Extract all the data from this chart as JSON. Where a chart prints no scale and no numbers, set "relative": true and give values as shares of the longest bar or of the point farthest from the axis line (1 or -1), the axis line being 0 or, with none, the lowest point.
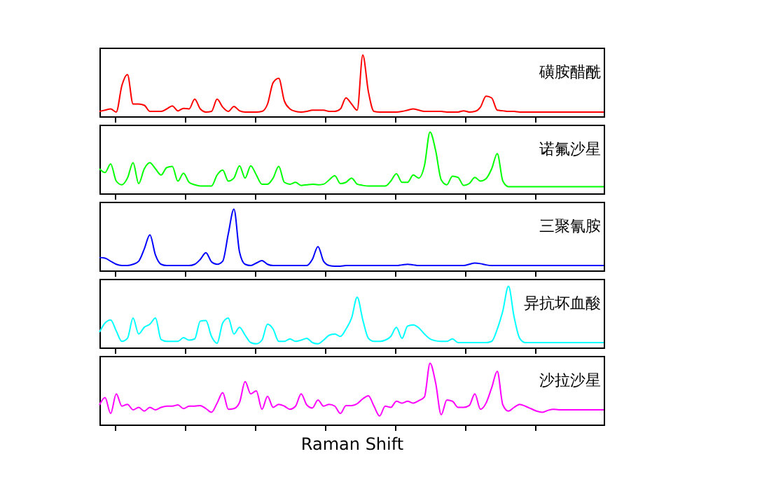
{
  "chart_data": [
    {
      "type": "line",
      "relative": true,
      "categories": [
        null,
        null,
        null,
        null,
        null,
        null,
        null,
        null,
        null,
        null,
        null,
        null,
        null,
        null,
        null,
        null,
        null,
        null,
        null,
        null,
        null,
        null,
        null,
        null,
        null,
        null,
        null,
        null,
        null,
        null,
        null,
        null,
        null,
        null,
        null,
        null,
        null,
        null,
        null,
        null,
        null,
        null,
        null,
        null,
        null,
        null,
        null,
        null,
        null,
        null,
        null,
        null,
        null,
        null,
        null,
        null,
        null,
        null,
        null,
        null,
        null,
        null,
        null,
        null,
        null,
        null,
        null,
        null,
        null,
        null,
        null,
        null,
        null,
        null,
        null,
        null,
        null,
        null,
        null,
        null,
        null,
        null,
        null,
        null,
        null,
        null,
        null,
        null,
        null,
        null,
        null
      ],
      "series": [
        {
          "name": "磺胺醋酰",
          "color": "#ff0000",
          "values": [
            0.08,
            0.1,
            0.12,
            0.07,
            0.5,
            0.68,
            0.2,
            0.2,
            0.18,
            0.08,
            0.08,
            0.08,
            0.12,
            0.17,
            0.09,
            0.13,
            0.12,
            0.28,
            0.12,
            0.07,
            0.08,
            0.28,
            0.15,
            0.08,
            0.16,
            0.09,
            0.07,
            0.07,
            0.07,
            0.08,
            0.2,
            0.55,
            0.62,
            0.25,
            0.12,
            0.08,
            0.07,
            0.08,
            0.1,
            0.1,
            0.1,
            0.08,
            0.08,
            0.12,
            0.3,
            0.2,
            0.1,
            1.0,
            0.4,
            0.08,
            0.07,
            0.07,
            0.07,
            0.07,
            0.08,
            0.1,
            0.12,
            0.1,
            0.08,
            0.08,
            0.08,
            0.08,
            0.07,
            0.07,
            0.07,
            0.09,
            0.07,
            0.08,
            0.15,
            0.33,
            0.3,
            0.1,
            0.09,
            0.08,
            0.08,
            0.07,
            0.07,
            0.07,
            0.07,
            0.07,
            0.07,
            0.07,
            0.07,
            0.07,
            0.07,
            0.07,
            0.07,
            0.07,
            0.07,
            0.07,
            0.07
          ]
        }
      ]
    },
    {
      "type": "line",
      "relative": true,
      "categories": [
        null,
        null,
        null,
        null,
        null,
        null,
        null,
        null,
        null,
        null,
        null,
        null,
        null,
        null,
        null,
        null,
        null,
        null,
        null,
        null,
        null,
        null,
        null,
        null,
        null,
        null,
        null,
        null,
        null,
        null,
        null,
        null,
        null,
        null,
        null,
        null,
        null,
        null,
        null,
        null,
        null,
        null,
        null,
        null,
        null,
        null,
        null,
        null,
        null,
        null,
        null,
        null,
        null,
        null,
        null,
        null,
        null,
        null,
        null,
        null,
        null,
        null,
        null,
        null,
        null,
        null,
        null,
        null,
        null,
        null,
        null,
        null,
        null,
        null,
        null,
        null,
        null,
        null,
        null,
        null,
        null,
        null,
        null,
        null,
        null,
        null,
        null,
        null,
        null,
        null,
        null
      ],
      "series": [
        {
          "name": "诺氟沙星",
          "color": "#00ff00",
          "values": [
            0.4,
            0.34,
            0.48,
            0.2,
            0.14,
            0.25,
            0.5,
            0.16,
            0.4,
            0.5,
            0.4,
            0.3,
            0.42,
            0.44,
            0.2,
            0.33,
            0.18,
            0.14,
            0.12,
            0.12,
            0.12,
            0.3,
            0.38,
            0.2,
            0.25,
            0.45,
            0.25,
            0.45,
            0.3,
            0.15,
            0.15,
            0.25,
            0.44,
            0.18,
            0.15,
            0.18,
            0.13,
            0.14,
            0.15,
            0.14,
            0.15,
            0.22,
            0.29,
            0.16,
            0.18,
            0.25,
            0.15,
            0.13,
            0.12,
            0.12,
            0.12,
            0.12,
            0.2,
            0.32,
            0.18,
            0.18,
            0.3,
            0.25,
            0.45,
            1.0,
            0.7,
            0.22,
            0.14,
            0.28,
            0.26,
            0.13,
            0.16,
            0.26,
            0.2,
            0.24,
            0.4,
            0.65,
            0.2,
            0.11,
            0.11,
            0.11,
            0.11,
            0.11,
            0.11,
            0.11,
            0.11,
            0.11,
            0.11,
            0.11,
            0.11,
            0.11,
            0.11,
            0.11,
            0.11,
            0.11,
            0.11
          ]
        }
      ]
    },
    {
      "type": "line",
      "relative": true,
      "categories": [
        null,
        null,
        null,
        null,
        null,
        null,
        null,
        null,
        null,
        null,
        null,
        null,
        null,
        null,
        null,
        null,
        null,
        null,
        null,
        null,
        null,
        null,
        null,
        null,
        null,
        null,
        null,
        null,
        null,
        null,
        null,
        null,
        null,
        null,
        null,
        null,
        null,
        null,
        null,
        null,
        null,
        null,
        null,
        null,
        null,
        null,
        null,
        null,
        null,
        null,
        null,
        null,
        null,
        null,
        null,
        null,
        null,
        null,
        null,
        null,
        null,
        null,
        null,
        null,
        null,
        null,
        null,
        null,
        null,
        null,
        null,
        null,
        null,
        null,
        null,
        null,
        null,
        null,
        null,
        null,
        null,
        null,
        null,
        null,
        null,
        null,
        null,
        null,
        null,
        null,
        null
      ],
      "series": [
        {
          "name": "三聚氰胺",
          "color": "#0000ff",
          "values": [
            0.21,
            0.2,
            0.15,
            0.1,
            0.08,
            0.08,
            0.1,
            0.15,
            0.35,
            0.58,
            0.25,
            0.1,
            0.08,
            0.08,
            0.08,
            0.08,
            0.08,
            0.1,
            0.18,
            0.29,
            0.14,
            0.1,
            0.15,
            0.6,
            1.0,
            0.3,
            0.1,
            0.08,
            0.12,
            0.16,
            0.1,
            0.08,
            0.08,
            0.08,
            0.08,
            0.08,
            0.08,
            0.08,
            0.18,
            0.39,
            0.15,
            0.08,
            0.07,
            0.07,
            0.08,
            0.08,
            0.08,
            0.08,
            0.08,
            0.08,
            0.08,
            0.08,
            0.08,
            0.08,
            0.09,
            0.1,
            0.09,
            0.08,
            0.08,
            0.08,
            0.08,
            0.08,
            0.08,
            0.08,
            0.08,
            0.08,
            0.1,
            0.12,
            0.11,
            0.09,
            0.08,
            0.08,
            0.08,
            0.08,
            0.08,
            0.08,
            0.08,
            0.08,
            0.08,
            0.08,
            0.08,
            0.08,
            0.08,
            0.08,
            0.08,
            0.08,
            0.08,
            0.08,
            0.08,
            0.08,
            0.08
          ]
        }
      ]
    },
    {
      "type": "line",
      "relative": true,
      "categories": [
        null,
        null,
        null,
        null,
        null,
        null,
        null,
        null,
        null,
        null,
        null,
        null,
        null,
        null,
        null,
        null,
        null,
        null,
        null,
        null,
        null,
        null,
        null,
        null,
        null,
        null,
        null,
        null,
        null,
        null,
        null,
        null,
        null,
        null,
        null,
        null,
        null,
        null,
        null,
        null,
        null,
        null,
        null,
        null,
        null,
        null,
        null,
        null,
        null,
        null,
        null,
        null,
        null,
        null,
        null,
        null,
        null,
        null,
        null,
        null,
        null,
        null,
        null,
        null,
        null,
        null,
        null,
        null,
        null,
        null,
        null,
        null,
        null,
        null,
        null,
        null,
        null,
        null,
        null,
        null,
        null,
        null,
        null,
        null,
        null,
        null,
        null,
        null,
        null,
        null,
        null
      ],
      "series": [
        {
          "name": "异抗坏血酸",
          "color": "#00ffff",
          "values": [
            0.25,
            0.4,
            0.45,
            0.27,
            0.1,
            0.15,
            0.48,
            0.22,
            0.33,
            0.38,
            0.48,
            0.13,
            0.1,
            0.1,
            0.1,
            0.16,
            0.12,
            0.14,
            0.43,
            0.44,
            0.18,
            0.07,
            0.4,
            0.48,
            0.22,
            0.33,
            0.2,
            0.08,
            0.06,
            0.12,
            0.38,
            0.3,
            0.1,
            0.1,
            0.14,
            0.1,
            0.12,
            0.15,
            0.08,
            0.06,
            0.12,
            0.2,
            0.22,
            0.18,
            0.3,
            0.48,
            0.82,
            0.45,
            0.15,
            0.1,
            0.1,
            0.12,
            0.18,
            0.33,
            0.15,
            0.35,
            0.37,
            0.32,
            0.22,
            0.14,
            0.11,
            0.1,
            0.1,
            0.14,
            0.08,
            0.08,
            0.08,
            0.08,
            0.08,
            0.08,
            0.1,
            0.3,
            0.6,
            1.0,
            0.5,
            0.15,
            0.08,
            0.08,
            0.08,
            0.08,
            0.08,
            0.08,
            0.08,
            0.08,
            0.08,
            0.08,
            0.08,
            0.08,
            0.08,
            0.08,
            0.08
          ]
        }
      ]
    },
    {
      "type": "line",
      "relative": true,
      "xlabel": "Raman Shift",
      "categories": [
        null,
        null,
        null,
        null,
        null,
        null,
        null,
        null,
        null,
        null,
        null,
        null,
        null,
        null,
        null,
        null,
        null,
        null,
        null,
        null,
        null,
        null,
        null,
        null,
        null,
        null,
        null,
        null,
        null,
        null,
        null,
        null,
        null,
        null,
        null,
        null,
        null,
        null,
        null,
        null,
        null,
        null,
        null,
        null,
        null,
        null,
        null,
        null,
        null,
        null,
        null,
        null,
        null,
        null,
        null,
        null,
        null,
        null,
        null,
        null,
        null,
        null,
        null,
        null,
        null,
        null,
        null,
        null,
        null,
        null,
        null,
        null,
        null,
        null,
        null,
        null,
        null,
        null,
        null,
        null,
        null,
        null,
        null,
        null,
        null,
        null,
        null,
        null,
        null,
        null,
        null
      ],
      "series": [
        {
          "name": "沙拉沙星",
          "color": "#ff00ff",
          "values": [
            0.32,
            0.44,
            0.18,
            0.5,
            0.3,
            0.33,
            0.24,
            0.28,
            0.22,
            0.28,
            0.24,
            0.28,
            0.3,
            0.3,
            0.32,
            0.26,
            0.3,
            0.3,
            0.31,
            0.26,
            0.2,
            0.35,
            0.52,
            0.25,
            0.26,
            0.36,
            0.7,
            0.5,
            0.55,
            0.25,
            0.46,
            0.28,
            0.33,
            0.3,
            0.25,
            0.3,
            0.5,
            0.32,
            0.27,
            0.4,
            0.3,
            0.33,
            0.3,
            0.18,
            0.31,
            0.31,
            0.34,
            0.42,
            0.47,
            0.3,
            0.14,
            0.3,
            0.28,
            0.38,
            0.35,
            0.38,
            0.35,
            0.39,
            0.45,
            1.0,
            0.68,
            0.16,
            0.4,
            0.38,
            0.28,
            0.28,
            0.31,
            0.5,
            0.25,
            0.35,
            0.6,
            0.87,
            0.32,
            0.22,
            0.28,
            0.33,
            0.3,
            0.26,
            0.22,
            0.2,
            0.23,
            0.25,
            0.24,
            0.24,
            0.24,
            0.24,
            0.24,
            0.24,
            0.24,
            0.24,
            0.24
          ]
        }
      ]
    }
  ]
}
